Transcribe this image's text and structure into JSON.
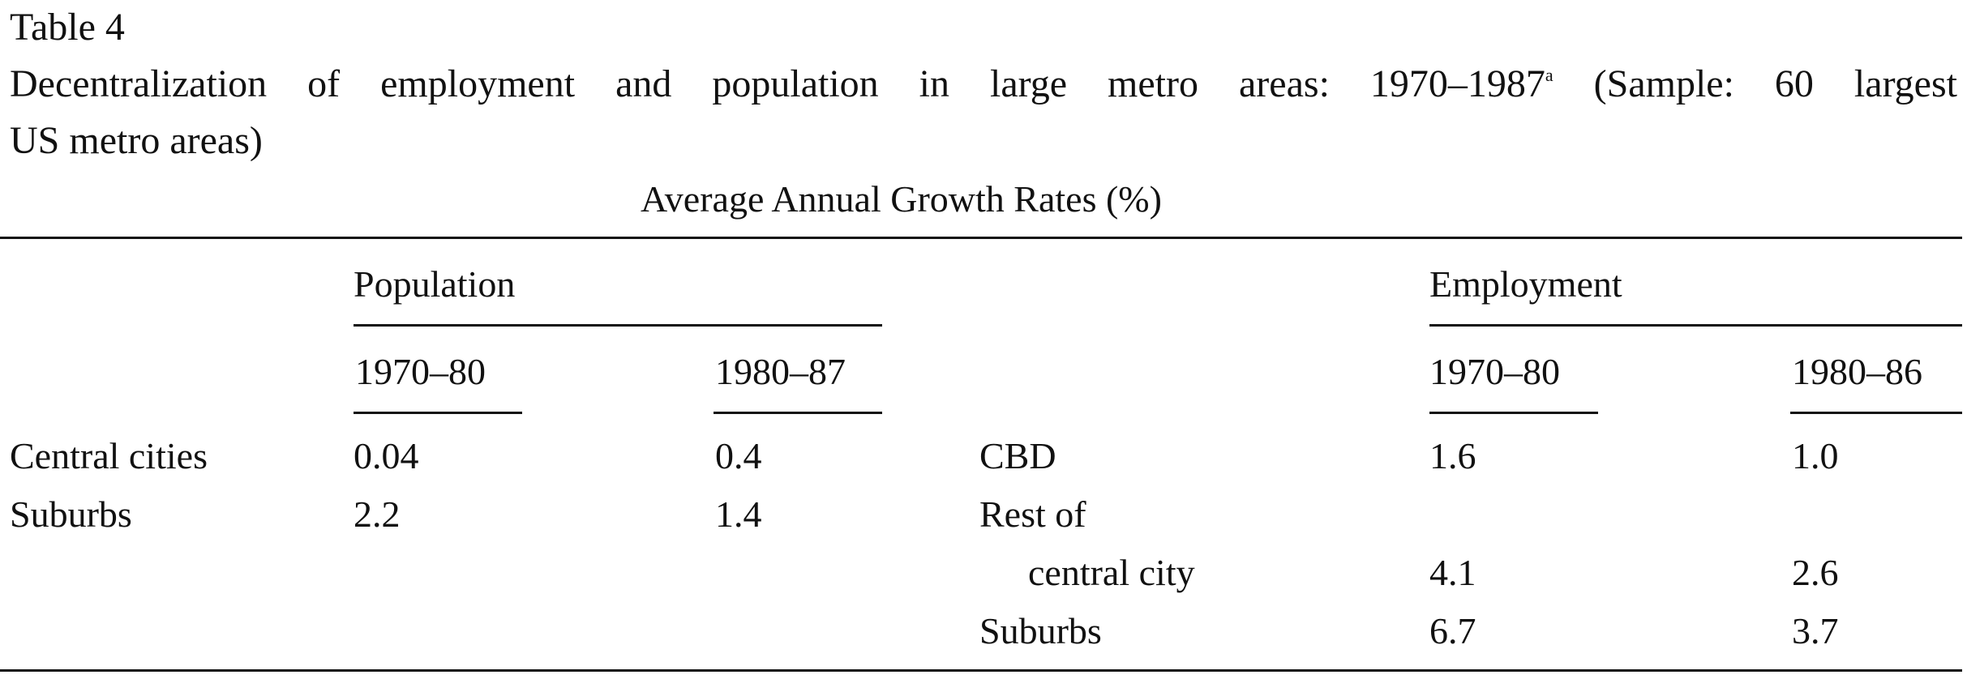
{
  "table": {
    "label": "Table 4",
    "caption_line1": "Decentralization of employment and population in large metro areas: 1970–1987",
    "caption_footnote_mark": "a",
    "caption_line1_rest": " (Sample: 60 largest",
    "caption_line2": "US metro areas)",
    "subtitle": "Average Annual Growth Rates (%)"
  },
  "population": {
    "header": "Population",
    "periods": [
      "1970–80",
      "1980–87"
    ],
    "rows": [
      {
        "label": "Central cities",
        "values": [
          "0.04",
          "0.4"
        ]
      },
      {
        "label": "Suburbs",
        "values": [
          "2.2",
          "1.4"
        ]
      }
    ]
  },
  "employment": {
    "header": "Employment",
    "periods": [
      "1970–80",
      "1980–86"
    ],
    "rows": [
      {
        "label": "CBD",
        "values": [
          "1.6",
          "1.0"
        ]
      },
      {
        "label": "Rest of",
        "values": [
          "",
          ""
        ]
      },
      {
        "label": "central city",
        "values": [
          "4.1",
          "2.6"
        ]
      },
      {
        "label": "Suburbs",
        "values": [
          "6.7",
          "3.7"
        ]
      }
    ]
  }
}
